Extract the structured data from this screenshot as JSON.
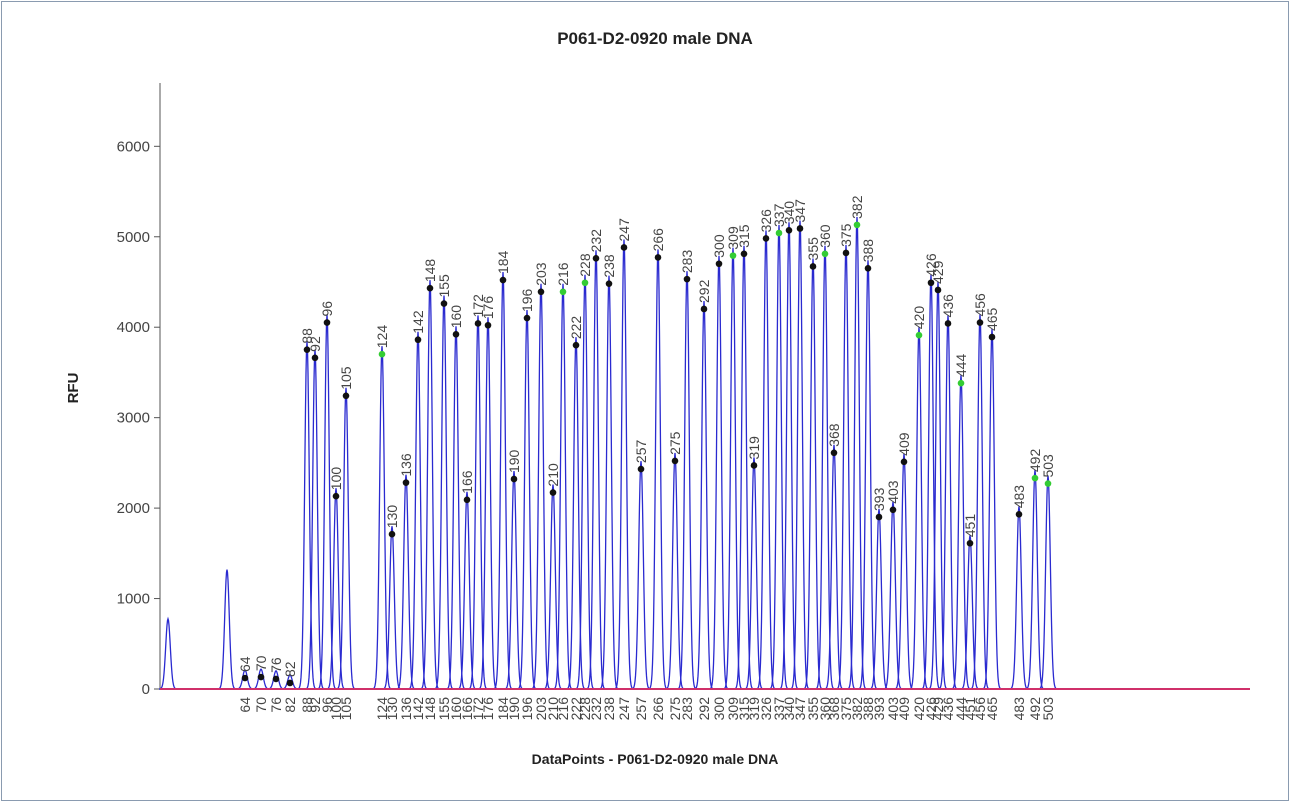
{
  "chart_data": {
    "type": "electropherogram",
    "title": "P061-D2-0920 male DNA",
    "x_label": "DataPoints - P061-D2-0920 male DNA",
    "y_label": "RFU",
    "xlim": [
      0,
      1090
    ],
    "ylim": [
      0,
      6700
    ],
    "yticks": [
      0,
      1000,
      2000,
      3000,
      4000,
      5000,
      6000
    ],
    "line_color": "#2a2ad0",
    "baseline_color": "#d0306a",
    "x": [
      8,
      67,
      85,
      101,
      116,
      130,
      147,
      155,
      167,
      176,
      186,
      222,
      232,
      246,
      258,
      270,
      284,
      296,
      307,
      318,
      328,
      343,
      354,
      367,
      381,
      393,
      403,
      416,
      425,
      436,
      449,
      464,
      481,
      498,
      515,
      527,
      544,
      559,
      573,
      584,
      594,
      606,
      619,
      629,
      640,
      653,
      665,
      674,
      686,
      697,
      708,
      719,
      733,
      744,
      759,
      771,
      778,
      788,
      801,
      810,
      820,
      832,
      859,
      875,
      888
    ],
    "values": [
      775,
      1320,
      210,
      220,
      200,
      155,
      3840,
      3750,
      4140,
      2220,
      3330,
      3790,
      1800,
      2370,
      3950,
      4520,
      4350,
      4010,
      2180,
      4130,
      4110,
      4610,
      2410,
      4190,
      4480,
      2260,
      4480,
      3890,
      4580,
      4850,
      4570,
      4970,
      2520,
      4860,
      2610,
      4620,
      4290,
      4790,
      4880,
      4900,
      2560,
      5070,
      5130,
      5160,
      5180,
      4760,
      4900,
      2700,
      4910,
      5220,
      4740,
      1990,
      2070,
      2600,
      4000,
      4580,
      4500,
      4130,
      3470,
      1700,
      4140,
      3980,
      2020,
      2420,
      2360
    ],
    "labels": [
      null,
      null,
      "64",
      "70",
      "76",
      "82",
      "88",
      "92",
      "96",
      "100",
      "105",
      "124",
      "130",
      "136",
      "142",
      "148",
      "155",
      "160",
      "166",
      "172",
      "176",
      "184",
      "190",
      "196",
      "203",
      "210",
      "216",
      "222",
      "228",
      "232",
      "238",
      "247",
      "257",
      "266",
      "275",
      "283",
      "292",
      "300",
      "309",
      "315",
      "319",
      "326",
      "337",
      "340",
      "347",
      "355",
      "360",
      "368",
      "375",
      "382",
      "388",
      "393",
      "403",
      "409",
      "420",
      "426",
      "429",
      "436",
      "444",
      "451",
      "456",
      "465",
      "483",
      "492",
      "503"
    ],
    "marker_colors": [
      null,
      null,
      "#111",
      "#111",
      "#111",
      "#111",
      "#111",
      "#111",
      "#111",
      "#111",
      "#111",
      "#3c3",
      "#111",
      "#111",
      "#111",
      "#111",
      "#111",
      "#111",
      "#111",
      "#111",
      "#111",
      "#111",
      "#111",
      "#111",
      "#111",
      "#111",
      "#3c3",
      "#111",
      "#3c3",
      "#111",
      "#111",
      "#111",
      "#111",
      "#111",
      "#111",
      "#111",
      "#111",
      "#111",
      "#3c3",
      "#111",
      "#111",
      "#111",
      "#3c3",
      "#111",
      "#111",
      "#111",
      "#3c3",
      "#111",
      "#111",
      "#3c3",
      "#111",
      "#111",
      "#111",
      "#111",
      "#3c3",
      "#111",
      "#111",
      "#111",
      "#3c3",
      "#111",
      "#111",
      "#111",
      "#111",
      "#3c3",
      "#3c3"
    ]
  }
}
